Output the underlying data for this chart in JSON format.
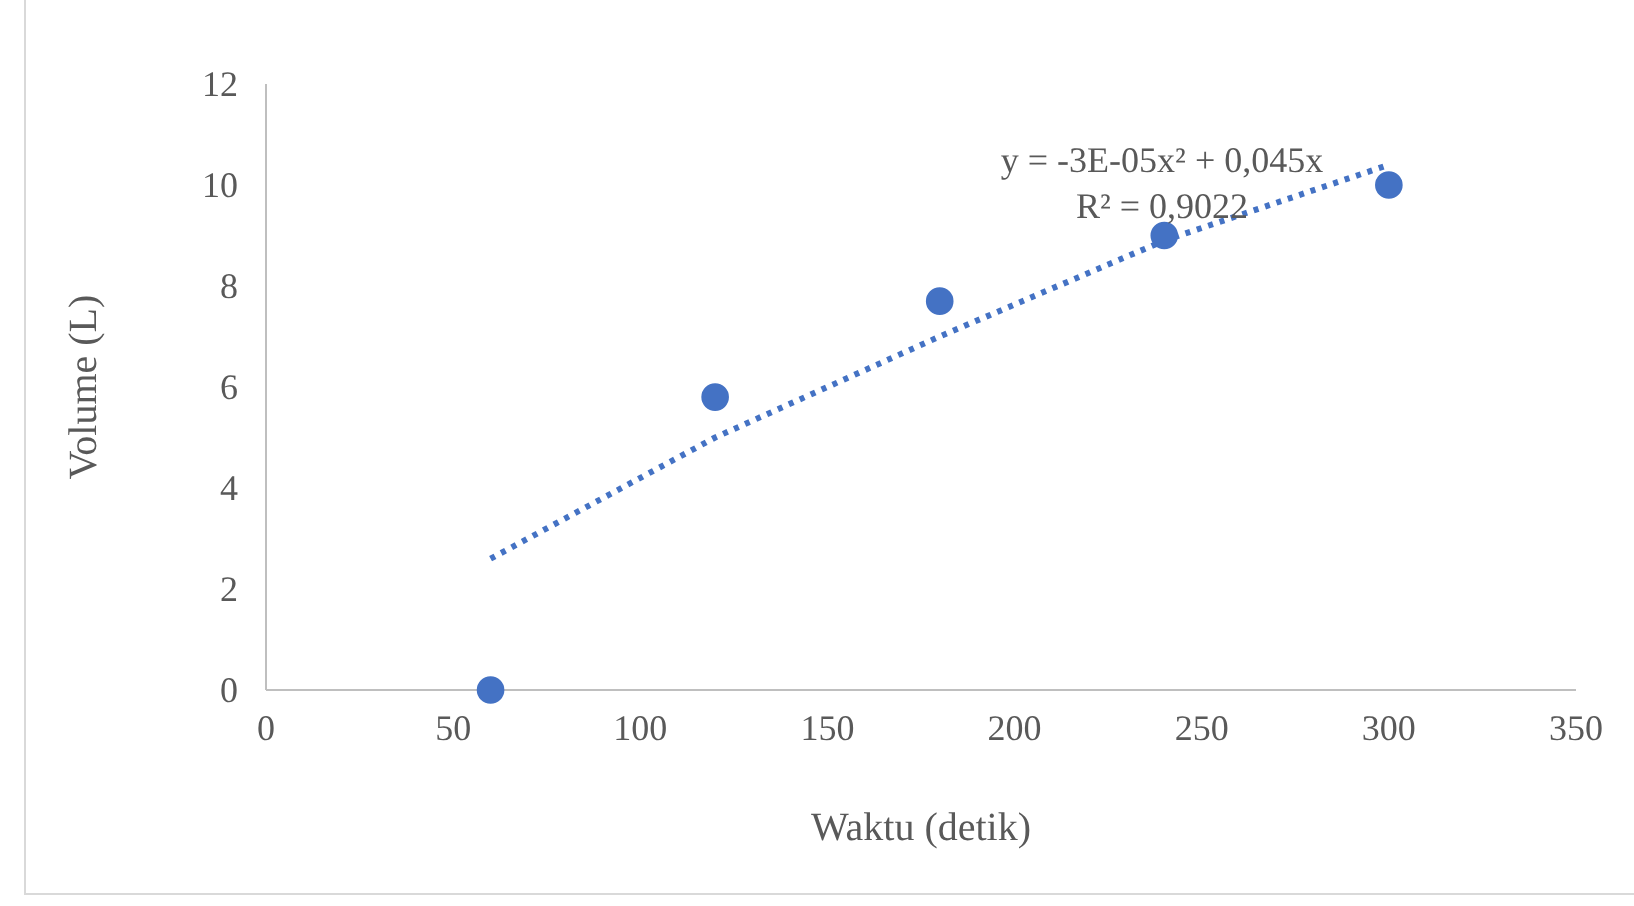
{
  "chart_data": {
    "type": "scatter",
    "xlabel": "Waktu (detik)",
    "ylabel": "Volume (L)",
    "xlim": [
      0,
      350
    ],
    "xticks": [
      0,
      50,
      100,
      150,
      200,
      250,
      300,
      350
    ],
    "ylim": [
      0,
      12
    ],
    "yticks": [
      0,
      2,
      4,
      6,
      8,
      10,
      12
    ],
    "grid": false,
    "series": [
      {
        "color": "#4472c4",
        "marker": "circle",
        "x": [
          60,
          120,
          180,
          240,
          300
        ],
        "values": [
          0,
          5.8,
          7.7,
          9.0,
          10.0
        ]
      },
      {
        "type": "line",
        "color": "#4472c4",
        "line_style": "dotted",
        "x": [
          60,
          120,
          180,
          240,
          300
        ],
        "values": [
          2.6,
          5.0,
          7.0,
          8.9,
          10.4
        ]
      }
    ],
    "annotations": [
      "y = -3E-05x² + 0,045x",
      "R² = 0,9022"
    ]
  }
}
